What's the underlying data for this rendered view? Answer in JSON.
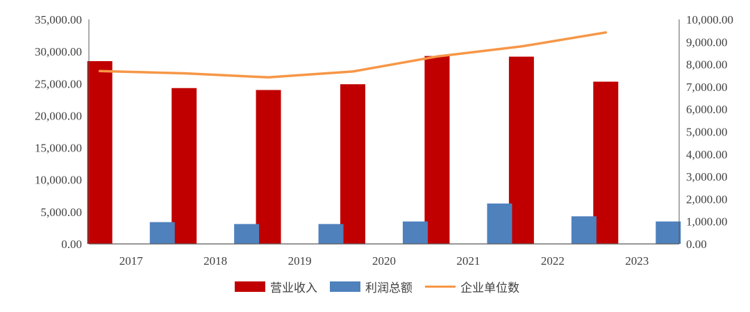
{
  "chart_data": {
    "type": "bar",
    "title": "",
    "xlabel": "",
    "ylabel": "",
    "categories": [
      "2017",
      "2018",
      "2019",
      "2020",
      "2021",
      "2022",
      "2023"
    ],
    "ylim": [
      0,
      35000
    ],
    "y2lim": [
      0,
      10000
    ],
    "yticks": [
      "0.00",
      "5,000.00",
      "10,000.00",
      "15,000.00",
      "20,000.00",
      "25,000.00",
      "30,000.00",
      "35,000.00"
    ],
    "y2ticks": [
      "0.00",
      "1,000.00",
      "2,000.00",
      "3,000.00",
      "4,000.00",
      "5,000.00",
      "6,000.00",
      "7,000.00",
      "8,000.00",
      "9,000.00",
      "10,000.00"
    ],
    "series": [
      {
        "name": "营业收入",
        "type": "bar",
        "axis": "left",
        "color": "#C00000",
        "values": [
          28500,
          24300,
          24000,
          24900,
          29300,
          29200,
          25300
        ]
      },
      {
        "name": "利润总额",
        "type": "bar",
        "axis": "left",
        "color": "#4F81BD",
        "values": [
          3400,
          3100,
          3100,
          3500,
          6300,
          4300,
          3500
        ]
      },
      {
        "name": "企业单位数",
        "type": "line",
        "axis": "right",
        "color": "#F79646",
        "values": [
          7700,
          7600,
          7420,
          7680,
          8350,
          8800,
          9420
        ]
      }
    ],
    "grid": false,
    "legend_position": "bottom"
  }
}
